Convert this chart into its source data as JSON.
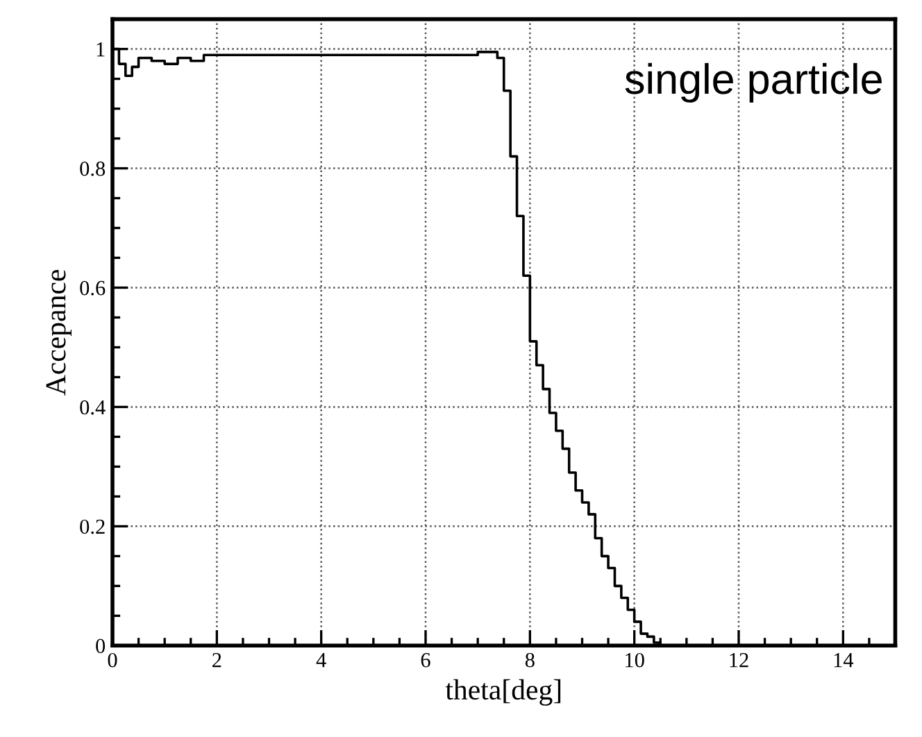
{
  "chart_data": {
    "type": "histogram",
    "xlabel": "theta[deg]",
    "ylabel": "Accepance",
    "annotations": [
      "single particle"
    ],
    "bins": [
      0,
      0.125,
      0.25,
      0.375,
      0.5,
      0.75,
      1.0,
      1.25,
      1.5,
      1.75,
      2.0,
      2.5,
      3.0,
      3.5,
      4.0,
      4.5,
      5.0,
      5.5,
      6.0,
      6.5,
      7.0,
      7.375,
      7.5,
      7.625,
      7.75,
      7.875,
      8.0,
      8.125,
      8.25,
      8.375,
      8.5,
      8.625,
      8.75,
      8.875,
      9.0,
      9.125,
      9.25,
      9.375,
      9.5,
      9.625,
      9.75,
      9.875,
      10.0,
      10.125,
      10.25,
      10.375,
      10.5
    ],
    "values": [
      1.0,
      0.975,
      0.955,
      0.97,
      0.985,
      0.98,
      0.975,
      0.985,
      0.98,
      0.99,
      0.99,
      0.99,
      0.99,
      0.99,
      0.99,
      0.99,
      0.99,
      0.99,
      0.99,
      0.99,
      0.995,
      0.985,
      0.93,
      0.82,
      0.72,
      0.62,
      0.51,
      0.47,
      0.43,
      0.39,
      0.36,
      0.33,
      0.29,
      0.26,
      0.24,
      0.22,
      0.18,
      0.15,
      0.13,
      0.1,
      0.08,
      0.06,
      0.04,
      0.02,
      0.015,
      0.005
    ],
    "color": "#000000",
    "xlim": [
      0,
      15
    ],
    "xticks": [
      0,
      2,
      4,
      6,
      8,
      10,
      12,
      14
    ],
    "ylim": [
      0,
      1.05
    ],
    "yticks": [
      0,
      0.2,
      0.4,
      0.6,
      0.8,
      1
    ],
    "grid": true
  }
}
